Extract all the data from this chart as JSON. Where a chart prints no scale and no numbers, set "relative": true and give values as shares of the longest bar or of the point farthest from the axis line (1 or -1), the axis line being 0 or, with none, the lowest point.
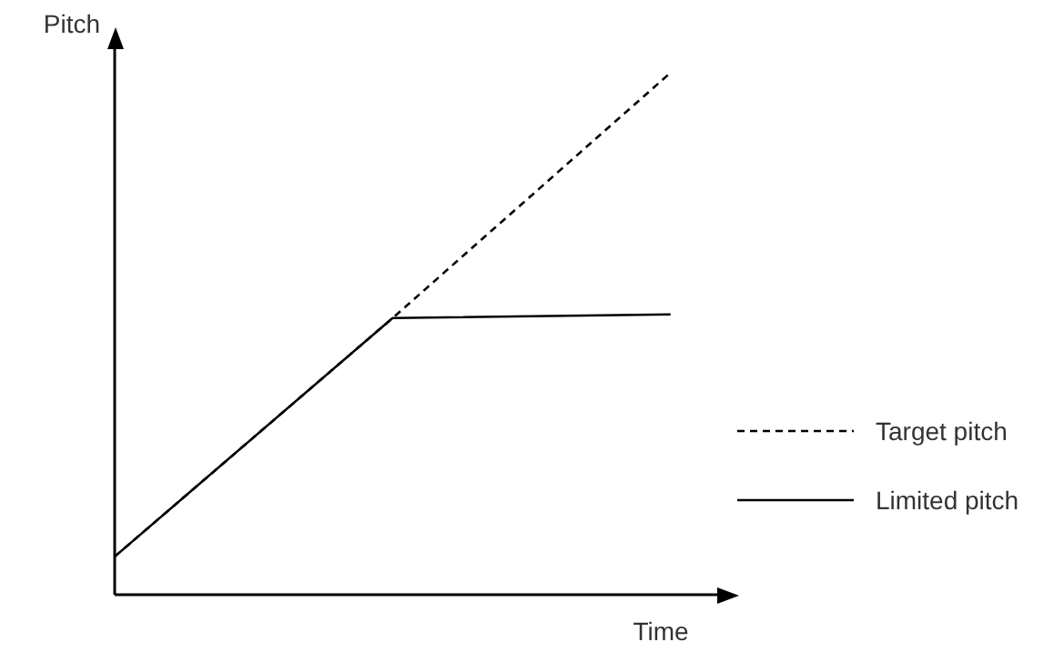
{
  "chart_data": {
    "type": "line",
    "relative": true,
    "xlabel": "Time",
    "ylabel": "Pitch",
    "categories": [
      null,
      null,
      null
    ],
    "legend": "bottom right",
    "marker": "none",
    "series": [
      {
        "name": "Target pitch",
        "color": "#000000",
        "line_style": "dashed",
        "values": [
          0.073,
          0.53,
          1
        ]
      },
      {
        "name": "Limited pitch",
        "color": "#000000",
        "line_style": "solid",
        "values": [
          0.073,
          0.53,
          0.537
        ]
      }
    ]
  }
}
